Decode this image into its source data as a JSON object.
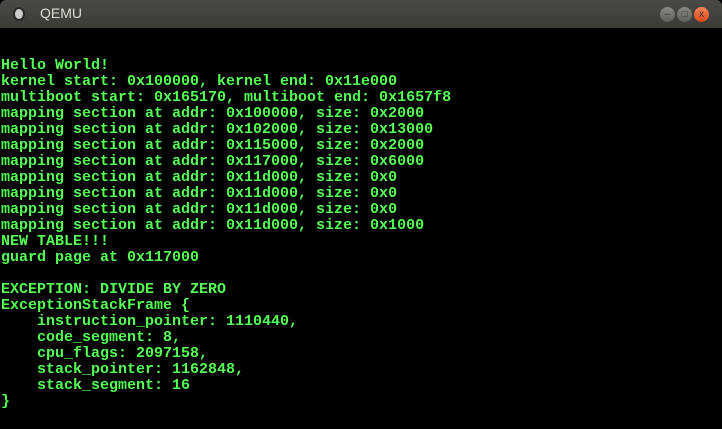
{
  "window": {
    "title": "QEMU",
    "buttons": {
      "minimize": "–",
      "maximize": "□",
      "close": "x"
    }
  },
  "colors": {
    "text": "#55ff55",
    "background": "#000000"
  },
  "console": {
    "lines": [
      "Hello World!",
      "kernel start: 0x100000, kernel end: 0x11e000",
      "multiboot start: 0x165170, multiboot end: 0x1657f8",
      "mapping section at addr: 0x100000, size: 0x2000",
      "mapping section at addr: 0x102000, size: 0x13000",
      "mapping section at addr: 0x115000, size: 0x2000",
      "mapping section at addr: 0x117000, size: 0x6000",
      "mapping section at addr: 0x11d000, size: 0x0",
      "mapping section at addr: 0x11d000, size: 0x0",
      "mapping section at addr: 0x11d000, size: 0x0",
      "mapping section at addr: 0x11d000, size: 0x1000",
      "NEW TABLE!!!",
      "guard page at 0x117000",
      "",
      "EXCEPTION: DIVIDE BY ZERO",
      "ExceptionStackFrame {",
      "    instruction_pointer: 1110440,",
      "    code_segment: 8,",
      "    cpu_flags: 2097158,",
      "    stack_pointer: 1162848,",
      "    stack_segment: 16",
      "}"
    ]
  }
}
